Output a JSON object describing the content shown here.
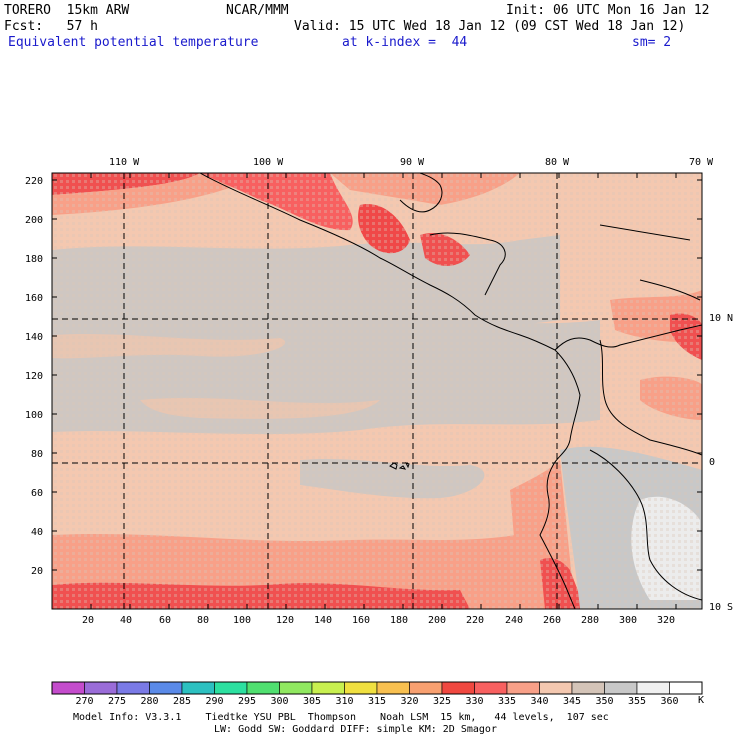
{
  "header": {
    "model": "TORERO  15km ARW",
    "org": "NCAR/MMM",
    "init": "Init: 06 UTC Mon 16 Jan 12",
    "fcst": "Fcst:   57 h",
    "valid": "Valid: 15 UTC Wed 18 Jan 12 (09 CST Wed 18 Jan 12)",
    "field": "Equivalent potential temperature",
    "level": "at k-index =  44",
    "smooth": "sm= 2"
  },
  "map": {
    "top_lon_labels": [
      "110 W",
      "100 W",
      "90 W",
      "80 W",
      "70 W"
    ],
    "right_lat_labels": [
      "10 N",
      "0",
      "10 S"
    ],
    "y_grid_labels": [
      "220",
      "200",
      "180",
      "160",
      "140",
      "120",
      "100",
      "80",
      "60",
      "40",
      "20"
    ],
    "x_grid_labels": [
      "20",
      "40",
      "60",
      "80",
      "100",
      "120",
      "140",
      "160",
      "180",
      "200",
      "220",
      "240",
      "260",
      "280",
      "300",
      "320"
    ]
  },
  "colorbar": {
    "labels": [
      "270",
      "275",
      "280",
      "285",
      "290",
      "295",
      "300",
      "305",
      "310",
      "315",
      "320",
      "325",
      "330",
      "335",
      "340",
      "345",
      "350",
      "355",
      "360"
    ],
    "unit": "K",
    "colors": [
      "#c44ccc",
      "#9a6cd8",
      "#7a7ae6",
      "#5a8ae8",
      "#2cc0c0",
      "#2ce0a0",
      "#50e070",
      "#90e860",
      "#c8f050",
      "#f0e040",
      "#f8c050",
      "#f8a070",
      "#f04840",
      "#f86060",
      "#f8a088",
      "#f4c8b0",
      "#d4c4b8",
      "#c8c8c8",
      "#f0f0f0",
      "#ffffff"
    ]
  },
  "footer": {
    "line1": "Model Info: V3.3.1    Tiedtke YSU PBL  Thompson    Noah LSM  15 km,   44 levels,  107 sec",
    "line2": "LW: Godd SW: Goddard DIFF: simple KM: 2D Smagor"
  }
}
